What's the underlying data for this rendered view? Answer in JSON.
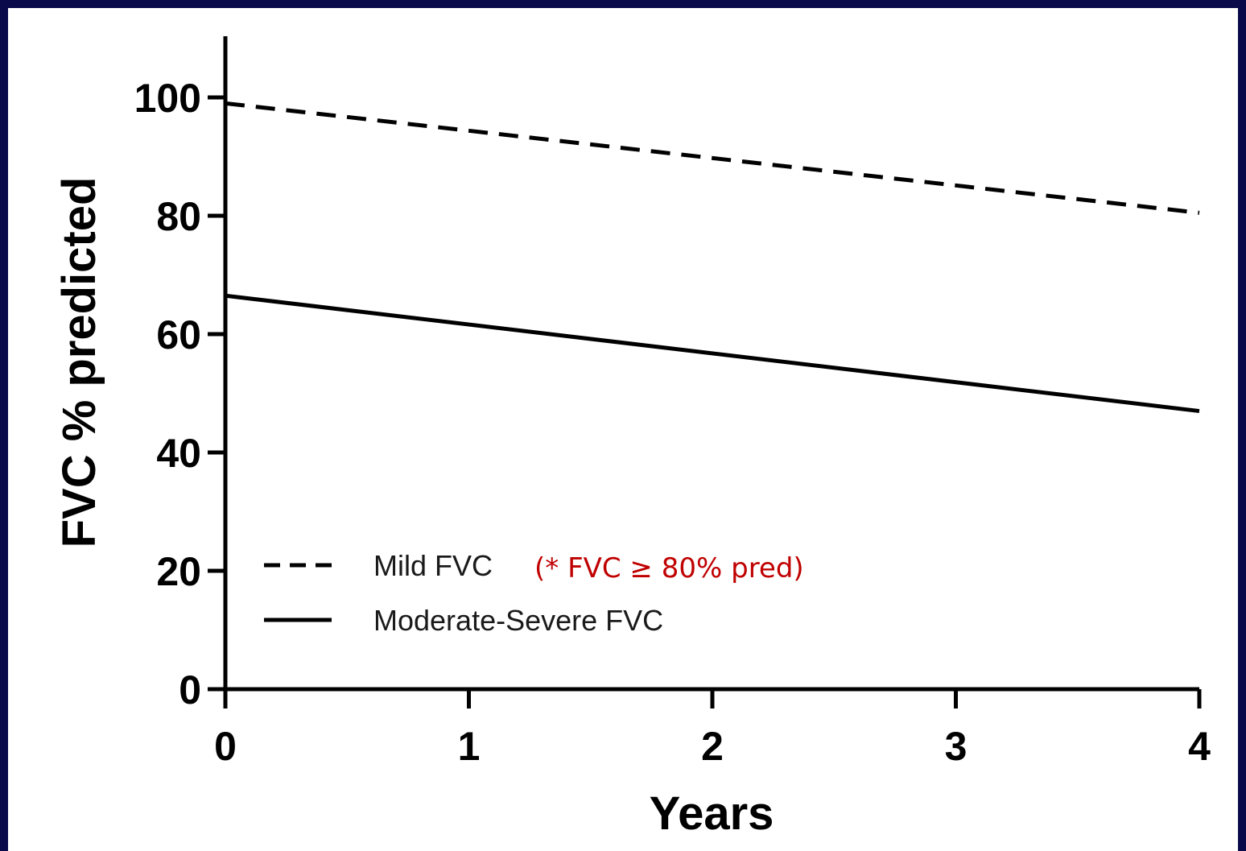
{
  "colors": {
    "frame": "#0a0a4a",
    "background": "#ffffff",
    "ink": "#000000",
    "annotation": "#c00000"
  },
  "chart_data": {
    "type": "line",
    "xlabel": "Years",
    "ylabel": "FVC % predicted",
    "xlim": [
      0,
      4
    ],
    "ylim": [
      0,
      110
    ],
    "x_ticks": [
      "0",
      "1",
      "2",
      "3",
      "4"
    ],
    "y_ticks": [
      "0",
      "20",
      "40",
      "60",
      "80",
      "100"
    ],
    "grid": false,
    "legend_position": "bottom-left",
    "series": [
      {
        "name": "Mild FVC",
        "note": "(* FVC ≥ 80% pred)",
        "style": "dashed",
        "color": "#000000",
        "x": [
          0,
          4
        ],
        "y": [
          99,
          80.5
        ]
      },
      {
        "name": "Moderate-Severe FVC",
        "style": "solid",
        "color": "#000000",
        "x": [
          0,
          4
        ],
        "y": [
          66.5,
          47
        ]
      }
    ]
  }
}
